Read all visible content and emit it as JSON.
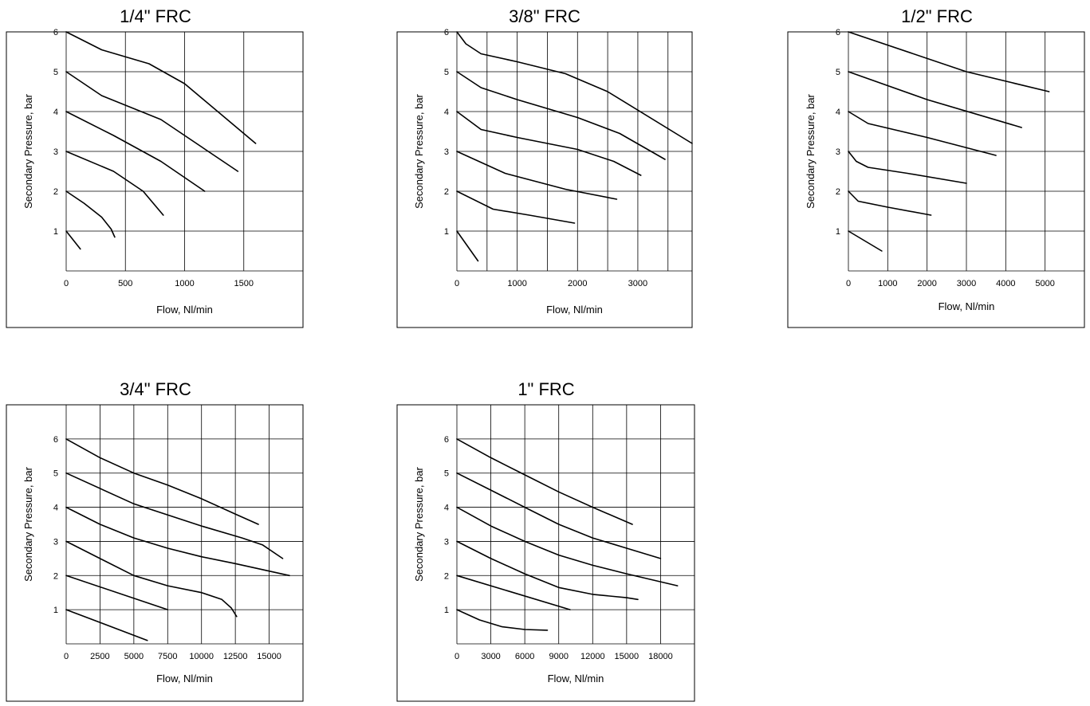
{
  "chart_data": [
    {
      "type": "line",
      "title": "1/4\" FRC",
      "xlabel": "Flow,  Nl/min",
      "ylabel": "Secondary Pressure, bar",
      "xlim": [
        0,
        2000
      ],
      "ylim": [
        0,
        6
      ],
      "x_ticks": [
        0,
        500,
        1000,
        1500
      ],
      "x_tick_labels": [
        "0",
        "500",
        "1000",
        "1500"
      ],
      "y_ticks": [
        1,
        2,
        3,
        4,
        5,
        6
      ],
      "y_tick_labels": [
        "1",
        "2",
        "3",
        "4",
        "5",
        "6"
      ],
      "x_grid": [
        500,
        1000,
        1500
      ],
      "y_grid": [
        1,
        2,
        3,
        4,
        5
      ],
      "grid": true,
      "series": [
        {
          "x": [
            0,
            120
          ],
          "y": [
            1,
            0.55
          ]
        },
        {
          "x": [
            0,
            150,
            300,
            380,
            410
          ],
          "y": [
            2,
            1.7,
            1.35,
            1.05,
            0.85
          ]
        },
        {
          "x": [
            0,
            400,
            650,
            820
          ],
          "y": [
            3,
            2.5,
            2.0,
            1.4
          ]
        },
        {
          "x": [
            0,
            400,
            800,
            1170
          ],
          "y": [
            4,
            3.4,
            2.75,
            2.0
          ]
        },
        {
          "x": [
            0,
            300,
            800,
            1450
          ],
          "y": [
            5,
            4.4,
            3.8,
            2.5
          ]
        },
        {
          "x": [
            0,
            300,
            700,
            1000,
            1600
          ],
          "y": [
            6,
            5.55,
            5.2,
            4.7,
            3.2
          ]
        }
      ]
    },
    {
      "type": "line",
      "title": "3/8\" FRC",
      "xlabel": "Flow,  Nl/min",
      "ylabel": "Secondary Pressure, bar",
      "xlim": [
        0,
        3900
      ],
      "ylim": [
        0,
        6
      ],
      "x_ticks": [
        0,
        1000,
        2000,
        3000
      ],
      "x_tick_labels": [
        "0",
        "1000",
        "2000",
        "3000"
      ],
      "y_ticks": [
        1,
        2,
        3,
        4,
        5,
        6
      ],
      "y_tick_labels": [
        "1",
        "2",
        "3",
        "4",
        "5",
        "6"
      ],
      "x_grid": [
        500,
        1000,
        1500,
        2000,
        2500,
        3000,
        3500
      ],
      "y_grid": [
        1,
        2,
        3,
        4,
        5
      ],
      "grid": true,
      "series": [
        {
          "x": [
            0,
            350
          ],
          "y": [
            1,
            0.25
          ]
        },
        {
          "x": [
            0,
            600,
            1200,
            1950
          ],
          "y": [
            2,
            1.55,
            1.4,
            1.2
          ]
        },
        {
          "x": [
            0,
            800,
            1800,
            2650
          ],
          "y": [
            3,
            2.45,
            2.05,
            1.8
          ]
        },
        {
          "x": [
            0,
            400,
            1000,
            2000,
            2600,
            3050
          ],
          "y": [
            4,
            3.55,
            3.35,
            3.05,
            2.75,
            2.4
          ]
        },
        {
          "x": [
            0,
            400,
            1000,
            2000,
            2700,
            3450
          ],
          "y": [
            5,
            4.6,
            4.3,
            3.85,
            3.45,
            2.8
          ]
        },
        {
          "x": [
            0,
            150,
            400,
            1000,
            1800,
            2500,
            3900
          ],
          "y": [
            6,
            5.7,
            5.45,
            5.25,
            4.95,
            4.5,
            3.2
          ]
        }
      ]
    },
    {
      "type": "line",
      "title": "1/2\" FRC",
      "xlabel": "Flow,  Nl/min",
      "ylabel": "Secondary Pressure,  bar",
      "xlim": [
        0,
        6000
      ],
      "ylim": [
        0,
        6
      ],
      "x_ticks": [
        0,
        1000,
        2000,
        3000,
        4000,
        5000
      ],
      "x_tick_labels": [
        "0",
        "1000",
        "2000",
        "3000",
        "4000",
        "5000"
      ],
      "y_ticks": [
        1,
        2,
        3,
        4,
        5,
        6
      ],
      "y_tick_labels": [
        "1",
        "2",
        "3",
        "4",
        "5",
        "6"
      ],
      "x_grid": [
        1000,
        2000,
        3000,
        4000,
        5000
      ],
      "y_grid": [
        1,
        2,
        3,
        4,
        5
      ],
      "grid": true,
      "series": [
        {
          "x": [
            0,
            850
          ],
          "y": [
            1,
            0.5
          ]
        },
        {
          "x": [
            0,
            250,
            1000,
            2100
          ],
          "y": [
            2,
            1.75,
            1.6,
            1.4
          ]
        },
        {
          "x": [
            0,
            200,
            500,
            1500,
            3000
          ],
          "y": [
            3,
            2.75,
            2.6,
            2.45,
            2.2
          ]
        },
        {
          "x": [
            0,
            500,
            2000,
            3750
          ],
          "y": [
            4,
            3.7,
            3.35,
            2.9
          ]
        },
        {
          "x": [
            0,
            2000,
            4400
          ],
          "y": [
            5,
            4.3,
            3.6
          ]
        },
        {
          "x": [
            0,
            3000,
            5100
          ],
          "y": [
            6,
            5.0,
            4.5
          ]
        }
      ]
    },
    {
      "type": "line",
      "title": "3/4\" FRC",
      "xlabel": "Flow, Nl/min",
      "ylabel": "Secondary Pressure, bar",
      "xlim": [
        0,
        17500
      ],
      "ylim": [
        0,
        7
      ],
      "x_ticks": [
        0,
        2500,
        5000,
        7500,
        10000,
        12500,
        15000
      ],
      "x_tick_labels": [
        "0",
        "2500",
        "5000",
        "7500",
        "10000",
        "12500",
        "15000"
      ],
      "y_ticks": [
        1,
        2,
        3,
        4,
        5,
        6
      ],
      "y_tick_labels": [
        "1",
        "2",
        "3",
        "4",
        "5",
        "6"
      ],
      "x_grid": [
        2500,
        5000,
        7500,
        10000,
        12500,
        15000
      ],
      "y_grid": [
        1,
        2,
        3,
        4,
        5,
        6
      ],
      "grid": true,
      "series": [
        {
          "x": [
            0,
            6000
          ],
          "y": [
            1,
            0.1
          ]
        },
        {
          "x": [
            0,
            7500
          ],
          "y": [
            2,
            1.0
          ]
        },
        {
          "x": [
            0,
            2500,
            5000,
            7500,
            10000,
            11500,
            12200,
            12600
          ],
          "y": [
            3,
            2.5,
            2.0,
            1.7,
            1.5,
            1.3,
            1.05,
            0.8
          ]
        },
        {
          "x": [
            0,
            2500,
            5000,
            7500,
            10000,
            12500,
            16500
          ],
          "y": [
            4,
            3.5,
            3.1,
            2.8,
            2.55,
            2.35,
            2.0
          ]
        },
        {
          "x": [
            0,
            5000,
            10000,
            13000,
            14500,
            16000
          ],
          "y": [
            5,
            4.1,
            3.45,
            3.1,
            2.9,
            2.5
          ]
        },
        {
          "x": [
            0,
            2500,
            5000,
            7500,
            10000,
            12500,
            14200
          ],
          "y": [
            6,
            5.45,
            5.0,
            4.65,
            4.25,
            3.8,
            3.5
          ]
        }
      ]
    },
    {
      "type": "line",
      "title": "1\" FRC",
      "xlabel": "Flow, Nl/min",
      "ylabel": "Secondary Pressure, bar",
      "xlim": [
        0,
        21000
      ],
      "ylim": [
        0,
        7
      ],
      "x_ticks": [
        0,
        3000,
        6000,
        9000,
        12000,
        15000,
        18000
      ],
      "x_tick_labels": [
        "0",
        "3000",
        "6000",
        "9000",
        "12000",
        "15000",
        "18000"
      ],
      "y_ticks": [
        1,
        2,
        3,
        4,
        5,
        6
      ],
      "y_tick_labels": [
        "1",
        "2",
        "3",
        "4",
        "5",
        "6"
      ],
      "x_grid": [
        3000,
        6000,
        9000,
        12000,
        15000,
        18000
      ],
      "y_grid": [
        1,
        2,
        3,
        4,
        5,
        6
      ],
      "grid": true,
      "series": [
        {
          "x": [
            0,
            2000,
            4000,
            6000,
            8000
          ],
          "y": [
            1,
            0.7,
            0.5,
            0.42,
            0.4
          ]
        },
        {
          "x": [
            0,
            10000
          ],
          "y": [
            2,
            1.0
          ]
        },
        {
          "x": [
            0,
            3000,
            6000,
            9000,
            12000,
            15000,
            16000
          ],
          "y": [
            3,
            2.5,
            2.05,
            1.65,
            1.45,
            1.35,
            1.3
          ]
        },
        {
          "x": [
            0,
            3000,
            6000,
            9000,
            12000,
            15000,
            19500
          ],
          "y": [
            4,
            3.45,
            3.0,
            2.6,
            2.3,
            2.05,
            1.7
          ]
        },
        {
          "x": [
            0,
            3000,
            6000,
            9000,
            12000,
            15000,
            18000
          ],
          "y": [
            5,
            4.5,
            4.0,
            3.5,
            3.1,
            2.8,
            2.5
          ]
        },
        {
          "x": [
            0,
            3000,
            6000,
            9000,
            12000,
            15500
          ],
          "y": [
            6,
            5.45,
            4.95,
            4.45,
            4.0,
            3.5
          ]
        }
      ]
    }
  ]
}
